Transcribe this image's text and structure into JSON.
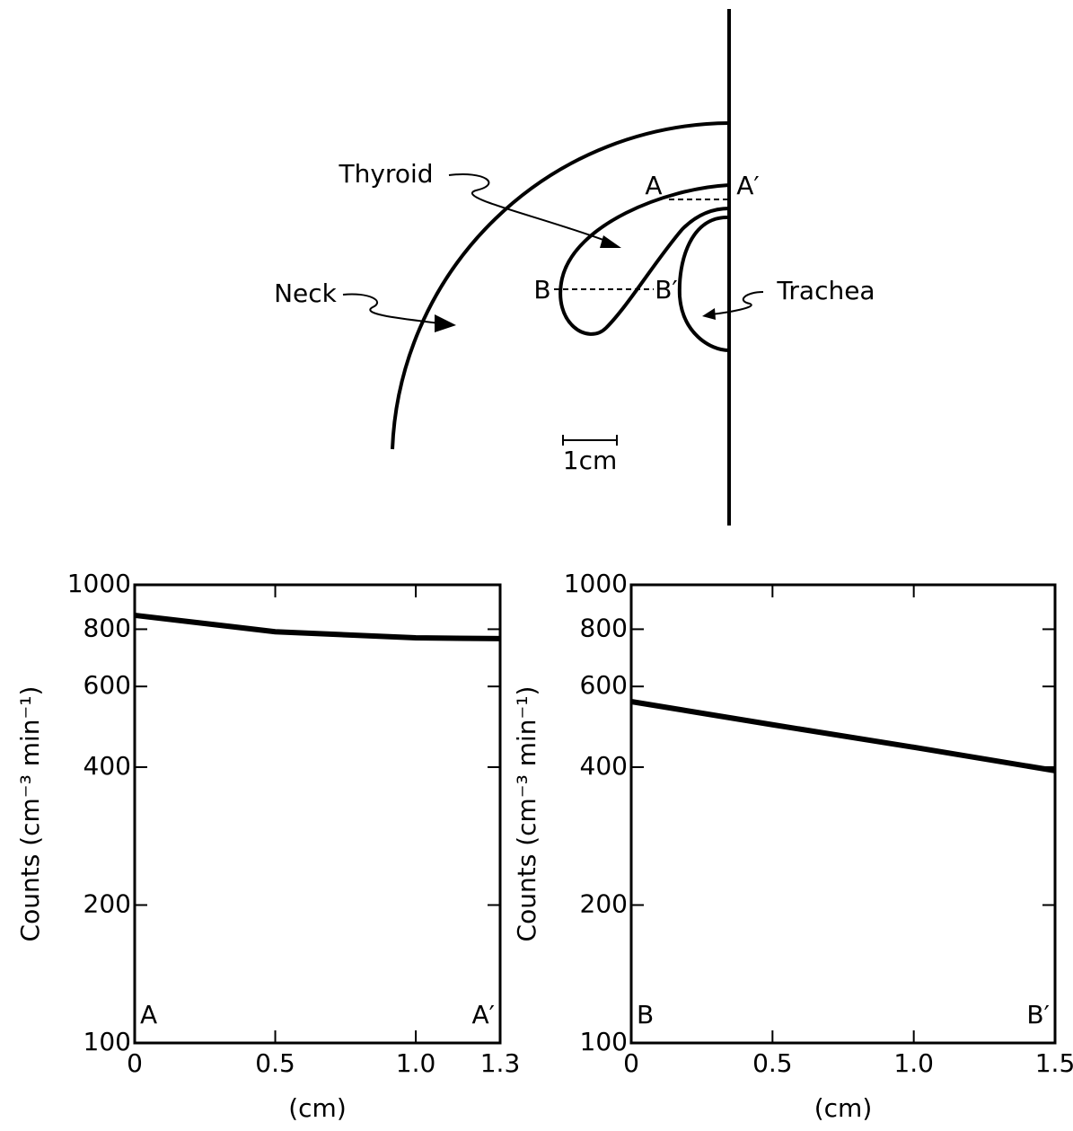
{
  "diagram": {
    "neck": "Neck",
    "thyroid": "Thyroid",
    "trachea": "Trachea",
    "a": "A",
    "a_prime": "A′",
    "b": "B",
    "b_prime": "B′",
    "scale": "1cm"
  },
  "chart_data": [
    {
      "type": "line",
      "x": [
        0,
        0.5,
        1.0,
        1.3
      ],
      "series": [
        {
          "color": "#000000",
          "values": [
            858,
            790,
            766,
            763
          ]
        }
      ],
      "xlim": [
        0,
        1.3
      ],
      "xticks": [
        0,
        0.5,
        {
          "value": 1,
          "label": "1.0"
        },
        1.3
      ],
      "ylim": [
        100,
        1000
      ],
      "yticks": [
        100,
        200,
        400,
        600,
        800,
        1000
      ],
      "yscale": "log",
      "ylabel": "Counts (cm⁻³ min⁻¹)",
      "xlabel": "(cm)",
      "annotations": [
        "A",
        "A′"
      ]
    },
    {
      "type": "line",
      "x": [
        0,
        0.5,
        1.0,
        1.5
      ],
      "series": [
        {
          "color": "#000000",
          "values": [
            556,
            495,
            442,
            393
          ]
        }
      ],
      "xlim": [
        0,
        1.5
      ],
      "xticks": [
        0,
        0.5,
        {
          "value": 1,
          "label": "1.0"
        },
        1.5
      ],
      "ylim": [
        100,
        1000
      ],
      "yticks": [
        100,
        200,
        400,
        600,
        800,
        1000
      ],
      "yscale": "log",
      "ylabel": "Counts (cm⁻³ min⁻¹)",
      "xlabel": "(cm)",
      "annotations": [
        "B",
        "B′"
      ]
    }
  ]
}
